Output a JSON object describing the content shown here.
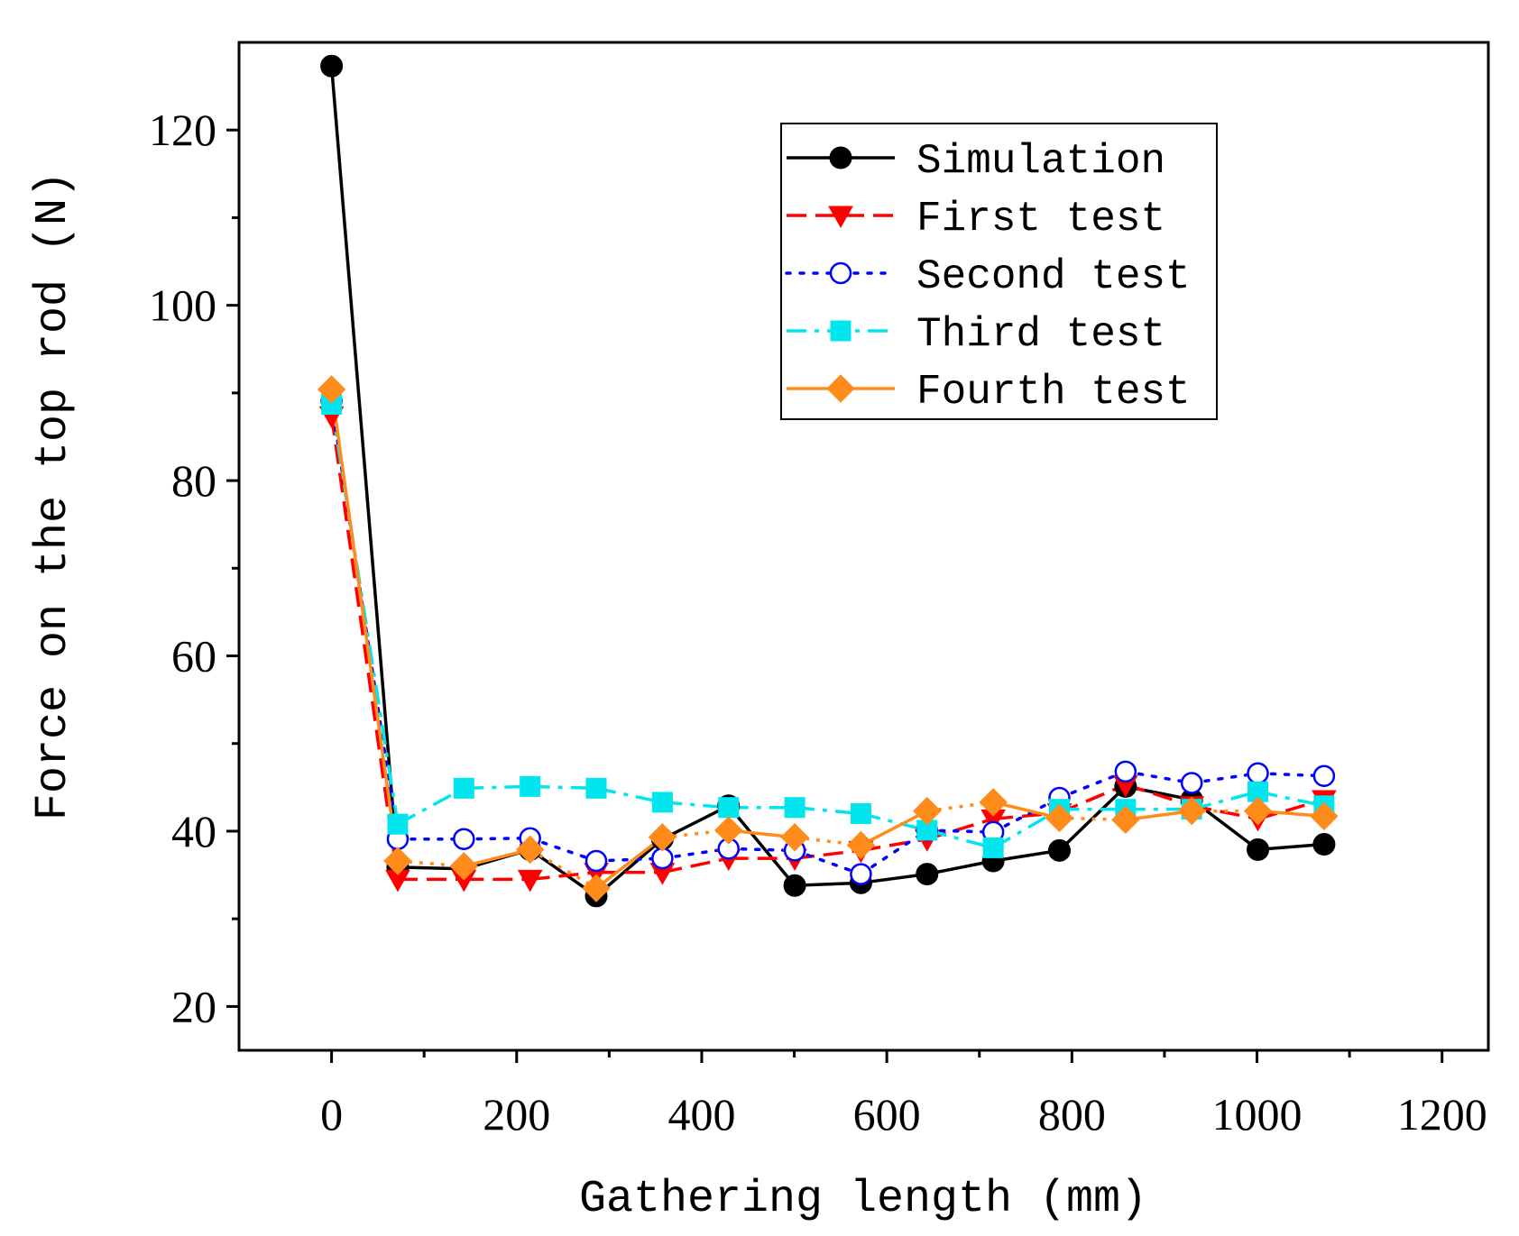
{
  "chart_data": {
    "type": "line",
    "title": "",
    "xlabel": "Gathering length (mm)",
    "ylabel": "Force on the top rod (N)",
    "xlim": [
      -100,
      1250
    ],
    "ylim": [
      15,
      130
    ],
    "xticks": [
      0,
      200,
      400,
      600,
      800,
      1000,
      1200
    ],
    "yticks": [
      20,
      40,
      60,
      80,
      100,
      120
    ],
    "grid": false,
    "legend_position": "top-right",
    "x": [
      0,
      71.5,
      143,
      214.5,
      286,
      357.5,
      429,
      500.5,
      572,
      643.5,
      715,
      786.5,
      858,
      929.5,
      1001,
      1072.5
    ],
    "series": [
      {
        "name": "Simulation",
        "color": "#000000",
        "marker": "circle-filled",
        "line": "solid",
        "values": [
          127.3,
          35.9,
          35.7,
          37.9,
          32.6,
          39.1,
          42.9,
          33.8,
          34.1,
          35.1,
          36.6,
          37.8,
          45.1,
          43.6,
          37.9,
          38.5
        ]
      },
      {
        "name": "First test",
        "color": "#ff0000",
        "marker": "triangle-down-filled",
        "line": "dashed",
        "values": [
          87.4,
          34.5,
          34.5,
          34.5,
          35.3,
          35.3,
          36.9,
          36.9,
          37.8,
          39.1,
          41.4,
          42.1,
          45.3,
          42.9,
          41.4,
          43.6
        ]
      },
      {
        "name": "Second test",
        "color": "#0000ff",
        "marker": "circle-open",
        "line": "dotted",
        "values": [
          89.1,
          39.1,
          39.1,
          39.2,
          36.6,
          36.9,
          38.0,
          37.8,
          35.1,
          40.1,
          39.9,
          43.8,
          46.8,
          45.5,
          46.6,
          46.3
        ]
      },
      {
        "name": "Third test",
        "color": "#00e5ee",
        "marker": "square-filled",
        "line": "dash-dot",
        "values": [
          88.7,
          40.8,
          44.9,
          45.1,
          44.9,
          43.3,
          42.7,
          42.7,
          42.0,
          40.1,
          38.1,
          42.5,
          42.5,
          42.5,
          44.5,
          42.9
        ]
      },
      {
        "name": "Fourth test",
        "color": "#ff8c1a",
        "marker": "diamond-filled",
        "line": "solid-dotted",
        "values": [
          90.4,
          36.6,
          36.0,
          37.9,
          33.5,
          39.3,
          40.1,
          39.3,
          38.4,
          42.3,
          43.3,
          41.5,
          41.3,
          42.3,
          42.3,
          41.7
        ]
      }
    ]
  }
}
